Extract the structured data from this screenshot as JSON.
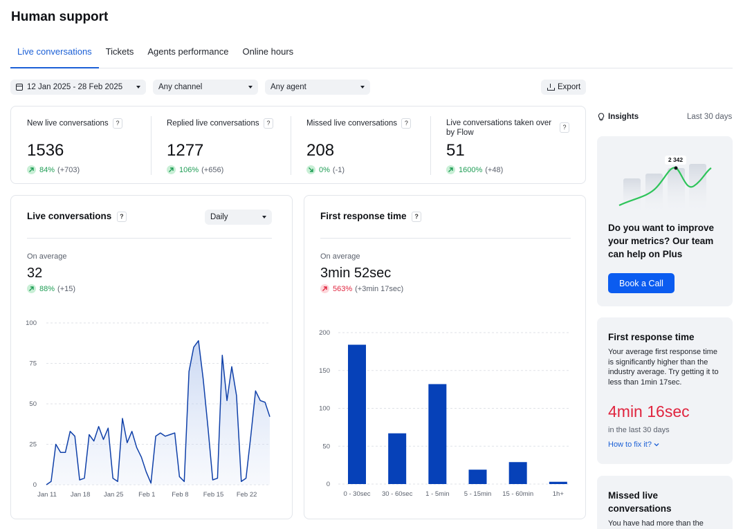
{
  "page": {
    "title": "Human support"
  },
  "tabs": [
    {
      "label": "Live conversations",
      "active": true
    },
    {
      "label": "Tickets",
      "active": false
    },
    {
      "label": "Agents performance",
      "active": false
    },
    {
      "label": "Online hours",
      "active": false
    }
  ],
  "filters": {
    "date_range": "12 Jan 2025 - 28 Feb 2025",
    "channel": "Any channel",
    "agent": "Any agent",
    "export_label": "Export"
  },
  "kpis": [
    {
      "label": "New live conversations",
      "value": "1536",
      "pct": "84%",
      "change": "(+703)",
      "trend": "up"
    },
    {
      "label": "Replied live conversations",
      "value": "1277",
      "pct": "106%",
      "change": "(+656)",
      "trend": "up"
    },
    {
      "label": "Missed live conversations",
      "value": "208",
      "pct": "0%",
      "change": "(-1)",
      "trend": "down"
    },
    {
      "label": "Live conversations taken over by Flow",
      "value": "51",
      "pct": "1600%",
      "change": "(+48)",
      "trend": "up"
    }
  ],
  "help_badge": "?",
  "live_chart": {
    "title": "Live conversations",
    "interval": "Daily",
    "avg_label": "On average",
    "avg_value": "32",
    "avg_pct": "88%",
    "avg_change": "(+15)"
  },
  "frt_chart": {
    "title": "First response time",
    "avg_label": "On average",
    "avg_value": "3min 52sec",
    "avg_pct": "563%",
    "avg_change": "(+3min 17sec)"
  },
  "chart_data": [
    {
      "type": "area",
      "title": "Live conversations",
      "x_tick_labels": [
        "Jan 11",
        "Jan 18",
        "Jan 25",
        "Feb 1",
        "Feb 8",
        "Feb 15",
        "Feb 22"
      ],
      "y_ticks": [
        0,
        25,
        50,
        75,
        100
      ],
      "ylim": [
        0,
        100
      ],
      "grid": true,
      "values": [
        0,
        2,
        25,
        20,
        20,
        33,
        30,
        3,
        4,
        31,
        27,
        36,
        28,
        35,
        4,
        2,
        41,
        26,
        33,
        23,
        17,
        8,
        1,
        30,
        32,
        30,
        31,
        32,
        5,
        2,
        70,
        85,
        89,
        65,
        35,
        3,
        4,
        80,
        52,
        73,
        55,
        2,
        4,
        30,
        58,
        52,
        51,
        42
      ]
    },
    {
      "type": "bar",
      "title": "First response time",
      "categories": [
        "0 - 30sec",
        "30 - 60sec",
        "1 - 5min",
        "5 - 15min",
        "15 - 60min",
        "1h+"
      ],
      "values": [
        184,
        67,
        132,
        19,
        29,
        3
      ],
      "y_ticks": [
        0,
        50,
        100,
        150,
        200
      ],
      "ylim": [
        0,
        200
      ],
      "grid": true,
      "color": "#0641b8"
    }
  ],
  "insights": {
    "title": "Insights",
    "period": "Last 30 days",
    "promo": {
      "badge_value": "2 342",
      "title": "Do you want to improve your metrics? Our team can help on Plus",
      "button": "Book a Call"
    },
    "frt_card": {
      "title": "First response time",
      "text": "Your average first response time is significantly higher than the industry average. Try getting it to less than 1min 17sec.",
      "value": "4min 16sec",
      "subtext": "in the last 30 days",
      "link": "How to fix it?"
    },
    "missed_card": {
      "title": "Missed live conversations",
      "text": "You have had more than the"
    }
  },
  "colors": {
    "accent": "#1a5fd6",
    "bar": "#0641b8",
    "line": "#0e3fa8",
    "positive": "#1f9d55",
    "negative": "#e0253f",
    "button": "#0b5cf0"
  }
}
